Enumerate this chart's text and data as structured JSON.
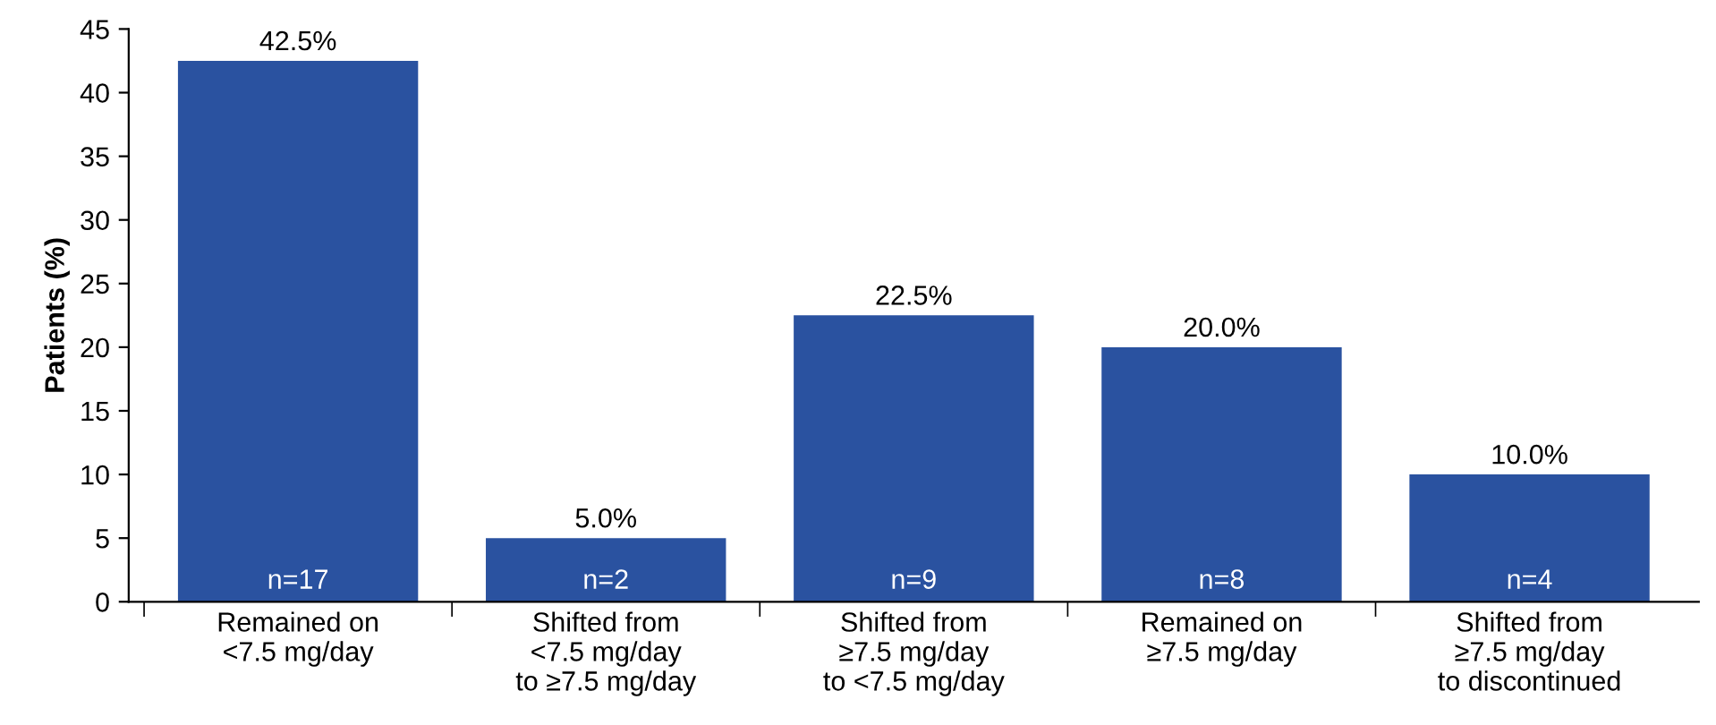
{
  "chart_data": {
    "type": "bar",
    "ylabel": "Patients (%)",
    "categories": [
      "Remained on\n<7.5 mg/day",
      "Shifted from\n<7.5 mg/day\nto ≥7.5 mg/day",
      "Shifted from\n≥7.5 mg/day\nto <7.5 mg/day",
      "Remained on\n≥7.5 mg/day",
      "Shifted from\n≥7.5 mg/day\nto discontinued"
    ],
    "values": [
      42.5,
      5.0,
      22.5,
      20.0,
      10.0
    ],
    "value_labels": [
      "42.5%",
      "5.0%",
      "22.5%",
      "20.0%",
      "10.0%"
    ],
    "color": "#2a52a0",
    "ylim": [
      0,
      45
    ],
    "yticks": [
      0,
      5,
      10,
      15,
      20,
      25,
      30,
      35,
      40,
      45
    ],
    "annotations": [
      {
        "text": "n=17",
        "x": "Remained on\n<7.5 mg/day",
        "y": 0
      },
      {
        "text": "n=2",
        "x": "Shifted from\n<7.5 mg/day\nto ≥7.5 mg/day",
        "y": 0
      },
      {
        "text": "n=9",
        "x": "Shifted from\n≥7.5 mg/day\nto <7.5 mg/day",
        "y": 0
      },
      {
        "text": "n=8",
        "x": "Remained on\n≥7.5 mg/day",
        "y": 0
      },
      {
        "text": "n=4",
        "x": "Shifted from\n≥7.5 mg/day\nto discontinued",
        "y": 0
      }
    ],
    "grid": false,
    "legend": false
  }
}
